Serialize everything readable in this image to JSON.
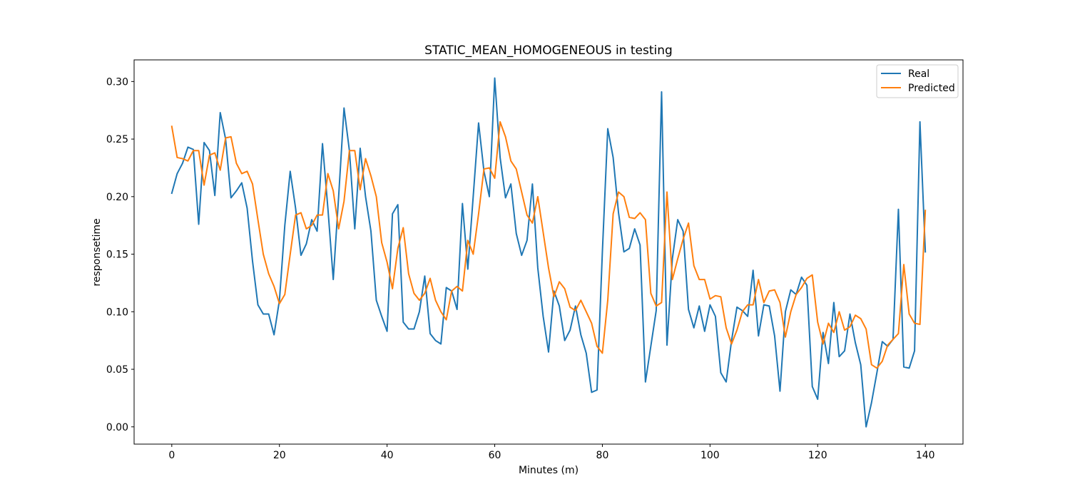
{
  "chart_data": {
    "type": "line",
    "title": "STATIC_MEAN_HOMOGENEOUS in testing",
    "xlabel": "Minutes (m)",
    "ylabel": "responsetime",
    "xlim": [
      -7,
      147
    ],
    "ylim": [
      -0.015,
      0.3188
    ],
    "xticks": [
      0,
      20,
      40,
      60,
      80,
      100,
      120,
      140
    ],
    "yticks": [
      0.0,
      0.05,
      0.1,
      0.15,
      0.2,
      0.25,
      0.3
    ],
    "ytick_labels": [
      "0.00",
      "0.05",
      "0.10",
      "0.15",
      "0.20",
      "0.25",
      "0.30"
    ],
    "grid": false,
    "legend_position": "top-right",
    "series": [
      {
        "name": "Real",
        "color": "#1f77b4",
        "x_start": 0,
        "x_step": 1,
        "values": [
          0.203,
          0.22,
          0.229,
          0.243,
          0.241,
          0.176,
          0.247,
          0.24,
          0.201,
          0.273,
          0.25,
          0.199,
          0.205,
          0.212,
          0.19,
          0.144,
          0.106,
          0.098,
          0.098,
          0.08,
          0.11,
          0.175,
          0.222,
          0.19,
          0.149,
          0.159,
          0.18,
          0.17,
          0.246,
          0.19,
          0.128,
          0.2,
          0.277,
          0.24,
          0.172,
          0.242,
          0.2,
          0.17,
          0.11,
          0.096,
          0.083,
          0.185,
          0.193,
          0.091,
          0.085,
          0.085,
          0.1,
          0.131,
          0.081,
          0.075,
          0.072,
          0.121,
          0.118,
          0.102,
          0.194,
          0.137,
          0.2,
          0.264,
          0.222,
          0.2,
          0.303,
          0.234,
          0.199,
          0.211,
          0.168,
          0.149,
          0.162,
          0.211,
          0.138,
          0.096,
          0.065,
          0.118,
          0.105,
          0.075,
          0.084,
          0.105,
          0.08,
          0.064,
          0.03,
          0.032,
          0.152,
          0.259,
          0.234,
          0.186,
          0.152,
          0.155,
          0.172,
          0.158,
          0.039,
          0.07,
          0.101,
          0.291,
          0.071,
          0.146,
          0.18,
          0.17,
          0.102,
          0.086,
          0.105,
          0.083,
          0.106,
          0.096,
          0.047,
          0.039,
          0.075,
          0.104,
          0.101,
          0.096,
          0.136,
          0.079,
          0.106,
          0.105,
          0.079,
          0.031,
          0.1,
          0.119,
          0.115,
          0.13,
          0.123,
          0.035,
          0.024,
          0.082,
          0.055,
          0.108,
          0.061,
          0.066,
          0.098,
          0.073,
          0.054,
          0.0,
          0.021,
          0.047,
          0.074,
          0.07,
          0.076,
          0.189,
          0.052,
          0.051,
          0.066,
          0.265,
          0.152
        ]
      },
      {
        "name": "Predicted",
        "color": "#ff7f0e",
        "x_start": 0,
        "x_step": 1,
        "values": [
          0.261,
          0.234,
          0.233,
          0.231,
          0.24,
          0.24,
          0.21,
          0.236,
          0.238,
          0.223,
          0.251,
          0.252,
          0.229,
          0.22,
          0.222,
          0.211,
          0.18,
          0.15,
          0.133,
          0.122,
          0.107,
          0.115,
          0.15,
          0.184,
          0.186,
          0.172,
          0.175,
          0.184,
          0.184,
          0.22,
          0.205,
          0.172,
          0.196,
          0.24,
          0.24,
          0.206,
          0.233,
          0.218,
          0.2,
          0.16,
          0.143,
          0.12,
          0.155,
          0.173,
          0.133,
          0.116,
          0.11,
          0.116,
          0.129,
          0.11,
          0.1,
          0.093,
          0.118,
          0.122,
          0.118,
          0.162,
          0.15,
          0.185,
          0.224,
          0.225,
          0.216,
          0.265,
          0.252,
          0.231,
          0.224,
          0.204,
          0.184,
          0.177,
          0.2,
          0.169,
          0.138,
          0.113,
          0.126,
          0.12,
          0.104,
          0.101,
          0.11,
          0.1,
          0.09,
          0.07,
          0.064,
          0.11,
          0.185,
          0.204,
          0.2,
          0.182,
          0.181,
          0.186,
          0.18,
          0.116,
          0.105,
          0.108,
          0.204,
          0.128,
          0.146,
          0.163,
          0.177,
          0.14,
          0.128,
          0.128,
          0.111,
          0.114,
          0.113,
          0.086,
          0.072,
          0.084,
          0.1,
          0.106,
          0.106,
          0.128,
          0.108,
          0.118,
          0.119,
          0.108,
          0.078,
          0.1,
          0.115,
          0.121,
          0.129,
          0.132,
          0.091,
          0.072,
          0.09,
          0.082,
          0.1,
          0.084,
          0.087,
          0.097,
          0.094,
          0.085,
          0.054,
          0.051,
          0.057,
          0.071,
          0.076,
          0.081,
          0.141,
          0.098,
          0.09,
          0.089,
          0.188
        ]
      }
    ]
  }
}
